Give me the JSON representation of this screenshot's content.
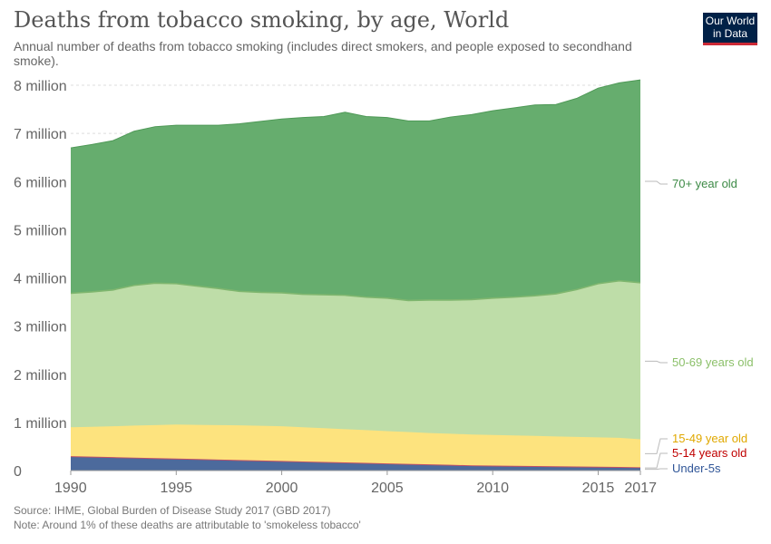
{
  "title": "Deaths from tobacco smoking, by age, World",
  "subtitle": "Annual number of deaths from tobacco smoking (includes direct smokers, and people exposed to secondhand smoke).",
  "logo": {
    "line1": "Our World",
    "line2": "in Data"
  },
  "footer": {
    "source": "Source: IHME, Global Burden of Disease Study 2017 (GBD 2017)",
    "note": "Note: Around 1% of these deaths are attributable to 'smokeless tobacco'"
  },
  "chart_data": {
    "type": "area",
    "stacked": true,
    "x": [
      1990,
      1991,
      1992,
      1993,
      1994,
      1995,
      1996,
      1997,
      1998,
      1999,
      2000,
      2001,
      2002,
      2003,
      2004,
      2005,
      2006,
      2007,
      2008,
      2009,
      2010,
      2011,
      2012,
      2013,
      2014,
      2015,
      2016,
      2017
    ],
    "xticks": [
      1990,
      1995,
      2000,
      2005,
      2010,
      2015,
      2017
    ],
    "ylim": [
      0,
      8000000
    ],
    "yticks": [
      0,
      1000000,
      2000000,
      3000000,
      4000000,
      5000000,
      6000000,
      7000000,
      8000000
    ],
    "ytick_labels": [
      "0",
      "1 million",
      "2 million",
      "3 million",
      "4 million",
      "5 million",
      "6 million",
      "7 million",
      "8 million"
    ],
    "legend_placement": "right",
    "series": [
      {
        "name": "Under-5s",
        "color": "#4c6a9c",
        "values": [
          280000,
          270000,
          260000,
          250000,
          240000,
          230000,
          220000,
          210000,
          200000,
          190000,
          180000,
          170000,
          160000,
          150000,
          140000,
          130000,
          120000,
          110000,
          100000,
          90000,
          85000,
          80000,
          75000,
          70000,
          65000,
          60000,
          55000,
          50000
        ]
      },
      {
        "name": "5-14 years old",
        "color": "#c15065",
        "values": [
          10000,
          10000,
          10000,
          10000,
          10000,
          10000,
          10000,
          10000,
          10000,
          10000,
          10000,
          10000,
          10000,
          10000,
          10000,
          10000,
          10000,
          10000,
          10000,
          10000,
          10000,
          10000,
          10000,
          10000,
          10000,
          10000,
          10000,
          10000
        ]
      },
      {
        "name": "15-49 year old",
        "color": "#fde37e",
        "values": [
          600000,
          620000,
          640000,
          665000,
          685000,
          705000,
          710000,
          715000,
          720000,
          720000,
          720000,
          710000,
          700000,
          690000,
          680000,
          670000,
          660000,
          650000,
          645000,
          640000,
          635000,
          630000,
          625000,
          620000,
          615000,
          610000,
          605000,
          580000
        ]
      },
      {
        "name": "50-69 years old",
        "color": "#bedda8",
        "values": [
          2790000,
          2810000,
          2840000,
          2920000,
          2955000,
          2935000,
          2890000,
          2845000,
          2790000,
          2780000,
          2780000,
          2770000,
          2780000,
          2790000,
          2770000,
          2770000,
          2740000,
          2770000,
          2785000,
          2810000,
          2850000,
          2880000,
          2920000,
          2970000,
          3070000,
          3200000,
          3270000,
          3260000
        ]
      },
      {
        "name": "70+ year old",
        "color": "#66ad6e",
        "values": [
          3020000,
          3060000,
          3100000,
          3200000,
          3250000,
          3290000,
          3340000,
          3390000,
          3480000,
          3550000,
          3610000,
          3670000,
          3700000,
          3800000,
          3750000,
          3750000,
          3730000,
          3720000,
          3800000,
          3840000,
          3890000,
          3930000,
          3960000,
          3930000,
          3970000,
          4060000,
          4110000,
          4210000
        ]
      }
    ]
  }
}
